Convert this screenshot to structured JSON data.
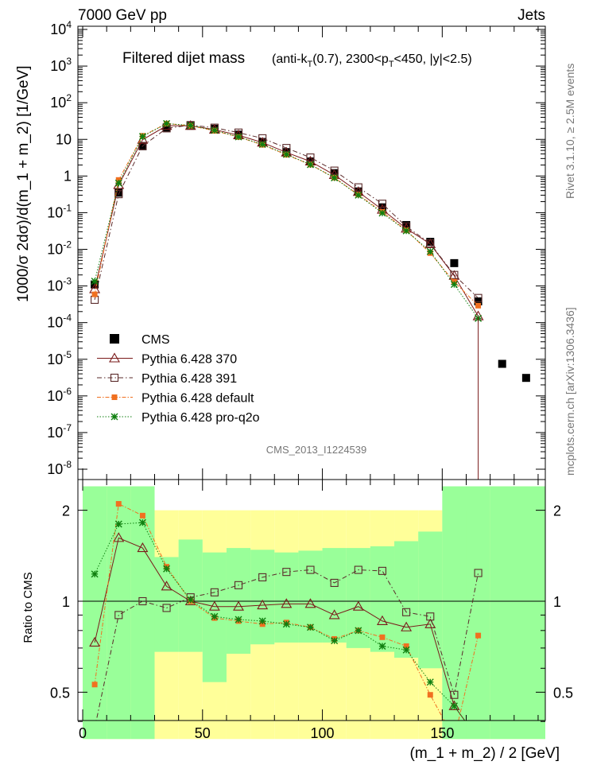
{
  "header": {
    "left": "7000 GeV pp",
    "right": "Jets"
  },
  "side_labels": {
    "rivet": "Rivet 3.1.10, ≥ 2.5M events",
    "mcplots": "mcplots.cern.ch [arXiv:1306.3436]"
  },
  "watermark": "CMS_2013_I1224539",
  "plot_title": {
    "main": "Filtered dijet mass",
    "selection": "(anti-k_T(0.7), 2300<p_T<450, |y|<2.5)"
  },
  "chart_data": [
    {
      "type": "scatter",
      "title": "Filtered dijet mass",
      "ylabel": "1000/σ 2dσ)/d(m_1 + m_2) [1/GeV]",
      "xlabel": "(m_1 + m_2) / 2 [GeV]",
      "yscale": "log",
      "ylim": [
        1e-08,
        10000
      ],
      "xlim": [
        -2,
        193
      ],
      "x_ticks": [
        0,
        50,
        100,
        150
      ],
      "y_tick_exponents": [
        -8,
        -7,
        -6,
        -5,
        -4,
        -3,
        -2,
        -1,
        0,
        1,
        2,
        3,
        4
      ],
      "y_tick_labels": [
        "10^-8",
        "10^-7",
        "10^-6",
        "10^-5",
        "10^-4",
        "10^-3",
        "10^-2",
        "10^-1",
        "1",
        "10",
        "10^2",
        "10^3",
        "10^4"
      ],
      "legend_position": "bottom-left",
      "x": [
        5,
        15,
        25,
        35,
        45,
        55,
        65,
        75,
        85,
        95,
        105,
        115,
        125,
        135,
        145,
        155,
        165,
        175,
        185
      ],
      "series": [
        {
          "name": "CMS",
          "color": "#000000",
          "marker": "filled-square",
          "values": [
            0.0011,
            0.35,
            6.5,
            21,
            23.5,
            19.5,
            13.5,
            8.5,
            4.5,
            2.5,
            1.2,
            0.38,
            0.14,
            0.046,
            0.016,
            0.0042,
            0.00038,
            7.5e-06,
            3.1e-06
          ]
        },
        {
          "name": "Pythia 6.428 370",
          "color": "#7a1a1a",
          "marker": "open-triangle",
          "line": "solid",
          "values": [
            0.00082,
            0.57,
            9.8,
            23.5,
            23.5,
            18.5,
            13,
            8.2,
            4.4,
            2.5,
            1.07,
            0.37,
            0.121,
            0.037,
            0.014,
            0.0019,
            0.00015
          ]
        },
        {
          "name": "Pythia 6.428 391",
          "color": "#5a2a2a",
          "marker": "open-square",
          "line": "dashdot",
          "values": [
            0.00042,
            0.32,
            6.6,
            20,
            24.5,
            20.8,
            15.3,
            10.7,
            5.8,
            3.2,
            1.4,
            0.49,
            0.175,
            0.042,
            0.0145,
            0.002,
            0.00047
          ]
        },
        {
          "name": "Pythia 6.428 default",
          "color": "#f07020",
          "marker": "filled-square-small",
          "line": "dashdot",
          "values": [
            0.00059,
            0.78,
            12.5,
            27,
            23.5,
            17.2,
            11.6,
            7.1,
            3.8,
            2.05,
            0.9,
            0.31,
            0.105,
            0.033,
            0.0079,
            0.0013,
            0.00029
          ]
        },
        {
          "name": "Pythia 6.428 pro-q2o",
          "color": "#108010",
          "marker": "star",
          "line": "dotted",
          "values": [
            0.00135,
            0.64,
            12,
            27,
            24,
            17.6,
            11.7,
            7.3,
            3.9,
            2.05,
            0.89,
            0.3,
            0.098,
            0.032,
            0.0087,
            0.0011,
            0.00013
          ]
        }
      ]
    },
    {
      "type": "scatter",
      "ylabel": "Ratio to CMS",
      "xlabel": "(m_1 + m_2) / 2 [GeV]",
      "yscale": "log",
      "ylim": [
        0.35,
        2.4
      ],
      "xlim": [
        -2,
        193
      ],
      "x_ticks": [
        0,
        50,
        100,
        150
      ],
      "y_ticks": [
        0.5,
        1,
        2
      ],
      "reference_line": 1,
      "uncertainty_bands": {
        "inner_color": "#99ff99",
        "outer_color": "#ffff99",
        "edges": [
          0,
          10,
          20,
          30,
          40,
          50,
          60,
          70,
          80,
          90,
          100,
          110,
          120,
          130,
          140,
          150,
          160,
          170,
          193
        ],
        "inner": [
          [
            0.35,
            2.4
          ],
          [
            0.35,
            2.4
          ],
          [
            0.35,
            2.4
          ],
          [
            0.68,
            1.4
          ],
          [
            0.68,
            1.6
          ],
          [
            0.54,
            1.45
          ],
          [
            0.67,
            1.5
          ],
          [
            0.72,
            1.48
          ],
          [
            0.73,
            1.45
          ],
          [
            0.73,
            1.47
          ],
          [
            0.73,
            1.5
          ],
          [
            0.7,
            1.5
          ],
          [
            0.68,
            1.52
          ],
          [
            0.65,
            1.58
          ],
          [
            0.6,
            1.7
          ],
          [
            0.35,
            2.4
          ],
          [
            0.35,
            2.4
          ],
          [
            0.35,
            2.4
          ]
        ],
        "outer": [
          [
            0.35,
            2.4
          ],
          [
            0.35,
            2.4
          ],
          [
            0.35,
            2.4
          ],
          [
            0.35,
            2.0
          ],
          [
            0.35,
            2.0
          ],
          [
            0.35,
            2.0
          ],
          [
            0.35,
            2.0
          ],
          [
            0.35,
            2.0
          ],
          [
            0.35,
            2.0
          ],
          [
            0.35,
            2.0
          ],
          [
            0.35,
            2.0
          ],
          [
            0.35,
            2.0
          ],
          [
            0.35,
            2.0
          ],
          [
            0.35,
            2.0
          ],
          [
            0.35,
            2.0
          ],
          [
            0.35,
            2.0
          ],
          [
            0.35,
            2.0
          ],
          [
            0.35,
            2.4
          ]
        ]
      },
      "x": [
        5,
        15,
        25,
        35,
        45,
        55,
        65,
        75,
        85,
        95,
        105,
        115,
        125,
        135,
        145,
        155,
        165
      ],
      "series": [
        {
          "name": "Pythia 6.428 370",
          "values": [
            0.73,
            1.62,
            1.5,
            1.12,
            1.0,
            0.96,
            0.96,
            0.97,
            0.98,
            0.98,
            0.9,
            0.96,
            0.86,
            0.82,
            0.84,
            0.45,
            0.35
          ]
        },
        {
          "name": "Pythia 6.428 391",
          "values": [
            0.38,
            0.9,
            1.0,
            0.95,
            1.03,
            1.07,
            1.13,
            1.2,
            1.25,
            1.27,
            1.15,
            1.27,
            1.26,
            0.92,
            0.89,
            0.49,
            1.24
          ]
        },
        {
          "name": "Pythia 6.428 default",
          "values": [
            0.53,
            2.1,
            1.92,
            1.3,
            1.0,
            0.88,
            0.86,
            0.84,
            0.85,
            0.82,
            0.75,
            0.8,
            0.76,
            0.71,
            0.49,
            0.35,
            0.77
          ]
        },
        {
          "name": "Pythia 6.428 pro-q2o",
          "values": [
            1.23,
            1.8,
            1.82,
            1.28,
            1.01,
            0.89,
            0.87,
            0.86,
            0.84,
            0.82,
            0.74,
            0.8,
            0.71,
            0.69,
            0.54,
            0.45,
            0.35
          ]
        }
      ]
    }
  ]
}
